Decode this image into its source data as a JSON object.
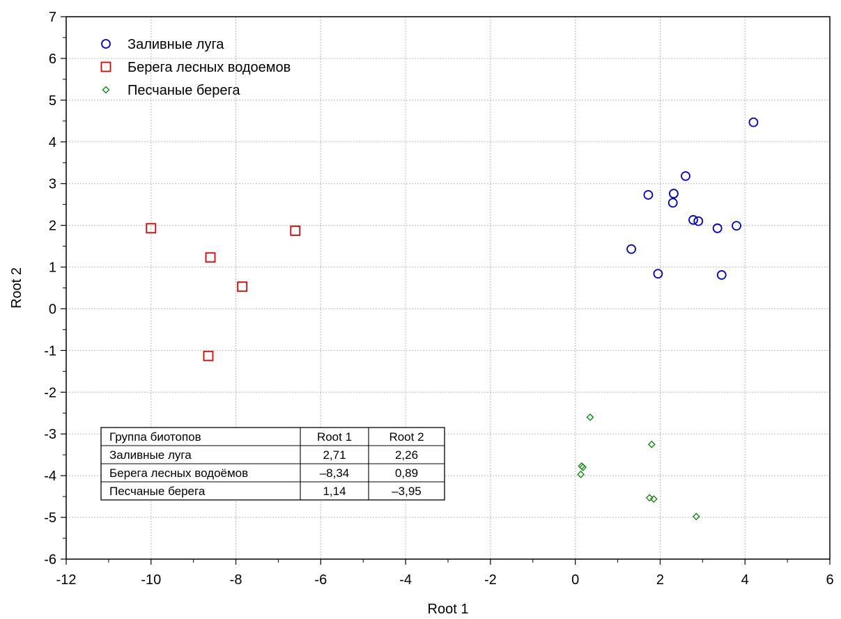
{
  "chart_data": {
    "type": "scatter",
    "xlabel": "Root 1",
    "ylabel": "Root 2",
    "xlim": [
      -12,
      6
    ],
    "ylim": [
      -6,
      7
    ],
    "xticks": [
      "-12",
      "-10",
      "-8",
      "-6",
      "-4",
      "-2",
      "0",
      "2",
      "4",
      "6"
    ],
    "yticks": [
      "-6",
      "-5",
      "-4",
      "-3",
      "-2",
      "-1",
      "0",
      "1",
      "2",
      "3",
      "4",
      "5",
      "6",
      "7"
    ],
    "grid": true,
    "legend_position": "top-left",
    "series": [
      {
        "name": "Заливные луга",
        "marker": "circle",
        "color": "#0000cc",
        "points": [
          [
            4.2,
            4.47
          ],
          [
            2.6,
            3.18
          ],
          [
            1.72,
            2.73
          ],
          [
            2.32,
            2.76
          ],
          [
            2.3,
            2.54
          ],
          [
            2.78,
            2.13
          ],
          [
            2.9,
            2.1
          ],
          [
            3.35,
            1.93
          ],
          [
            3.8,
            1.99
          ],
          [
            1.32,
            1.43
          ],
          [
            1.95,
            0.84
          ],
          [
            3.45,
            0.81
          ]
        ]
      },
      {
        "name": "Берега лесных водоемов",
        "marker": "square",
        "color": "#dd0000",
        "points": [
          [
            -10.0,
            1.93
          ],
          [
            -6.6,
            1.87
          ],
          [
            -8.6,
            1.23
          ],
          [
            -7.85,
            0.53
          ],
          [
            -8.65,
            -1.13
          ]
        ]
      },
      {
        "name": "Песчаные берега",
        "marker": "diamond",
        "color": "#008800",
        "points": [
          [
            0.35,
            -2.6
          ],
          [
            1.8,
            -3.25
          ],
          [
            0.15,
            -3.77
          ],
          [
            0.18,
            -3.8
          ],
          [
            0.13,
            -3.97
          ],
          [
            1.75,
            -4.53
          ],
          [
            1.85,
            -4.56
          ],
          [
            2.85,
            -4.98
          ]
        ]
      }
    ],
    "table": {
      "headers": [
        "Группа биотопов",
        "Root 1",
        "Root 2"
      ],
      "rows": [
        [
          "Заливные луга",
          "2,71",
          "2,26"
        ],
        [
          "Берега лесных водоёмов",
          "–8,34",
          "0,89"
        ],
        [
          "Песчаные берега",
          "1,14",
          "–3,95"
        ]
      ]
    }
  }
}
